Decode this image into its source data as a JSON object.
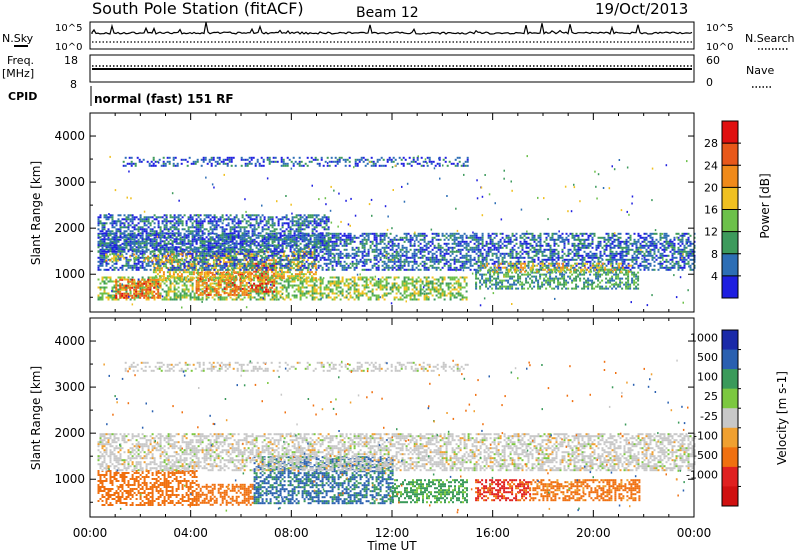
{
  "header": {
    "station": "South Pole Station (fitACF)",
    "beam": "Beam 12",
    "date": "19/Oct/2013"
  },
  "top_panels": {
    "nsky_label": "N.Sky",
    "nsky_ticks": [
      "10^5",
      "10^0"
    ],
    "nsearch_label": "N.Search",
    "nsearch_ticks": [
      "10^5",
      "10^0"
    ],
    "freq_label": "Freq.",
    "freq_unit": "[MHz]",
    "freq_ticks": [
      "18",
      "8"
    ],
    "nave_label": "Nave",
    "nave_ticks": [
      "60",
      "0"
    ],
    "cpid_label": "CPID",
    "cpid_value": "normal (fast) 151 RF"
  },
  "x_axis": {
    "label": "Time UT",
    "ticks": [
      "00:00",
      "04:00",
      "08:00",
      "12:00",
      "16:00",
      "20:00",
      "00:00"
    ]
  },
  "colors": {
    "power": [
      "#1f1fe0",
      "#2d6eb5",
      "#3d9a5c",
      "#6cc04a",
      "#f0c020",
      "#f08a1a",
      "#e8581a",
      "#e01010"
    ],
    "velocity": [
      "#1a2aa8",
      "#2a60b0",
      "#3a9a5a",
      "#7cc840",
      "#c8c8c8",
      "#f0a030",
      "#f07010",
      "#e02020",
      "#d01010"
    ]
  },
  "chart_data": [
    {
      "type": "heatmap",
      "name": "power",
      "xlabel": "Time UT",
      "ylabel": "Slant Range [km]",
      "xlim": [
        0,
        24
      ],
      "ylim": [
        180,
        4500
      ],
      "yticks": [
        1000,
        2000,
        3000,
        4000
      ],
      "colorbar": {
        "label": "Power [dB]",
        "ticks": [
          4,
          8,
          12,
          16,
          20,
          24,
          28
        ],
        "range": [
          0,
          30
        ]
      },
      "bands": [
        {
          "range_km": [
            450,
            950
          ],
          "t_start": 0.3,
          "t_end": 15.0,
          "level_db": 14
        },
        {
          "range_km": [
            500,
            900
          ],
          "t_start": 1.0,
          "t_end": 2.8,
          "level_db": 24
        },
        {
          "range_km": [
            550,
            1050
          ],
          "t_start": 4.2,
          "t_end": 6.4,
          "level_db": 24
        },
        {
          "range_km": [
            600,
            1250
          ],
          "t_start": 6.4,
          "t_end": 7.3,
          "level_db": 28
        },
        {
          "range_km": [
            850,
            1500
          ],
          "t_start": 2.5,
          "t_end": 9.0,
          "level_db": 18
        },
        {
          "range_km": [
            1100,
            1900
          ],
          "t_start": 0.3,
          "t_end": 24.0,
          "level_db": 6
        },
        {
          "range_km": [
            1300,
            1450
          ],
          "t_start": 0.6,
          "t_end": 3.8,
          "level_db": 18
        },
        {
          "range_km": [
            1500,
            2300
          ],
          "t_start": 0.3,
          "t_end": 9.5,
          "level_db": 6
        },
        {
          "range_km": [
            700,
            1100
          ],
          "t_start": 15.3,
          "t_end": 21.8,
          "level_db": 10
        },
        {
          "range_km": [
            1050,
            1250
          ],
          "t_start": 15.5,
          "t_end": 21.5,
          "level_db": 18
        },
        {
          "range_km": [
            3350,
            3550
          ],
          "t_start": 1.3,
          "t_end": 15.0,
          "level_db": 5
        }
      ]
    },
    {
      "type": "heatmap",
      "name": "velocity",
      "xlabel": "Time UT",
      "ylabel": "Slant Range [km]",
      "xlim": [
        0,
        24
      ],
      "ylim": [
        180,
        4500
      ],
      "yticks": [
        1000,
        2000,
        3000,
        4000
      ],
      "colorbar": {
        "label": "Velocity [m s-1]",
        "ticks": [
          1000,
          500,
          100,
          25,
          -25,
          -100,
          -500,
          -1000
        ]
      },
      "bands": [
        {
          "range_km": [
            450,
            1200
          ],
          "t_start": 0.3,
          "t_end": 4.2,
          "velocity": -200
        },
        {
          "range_km": [
            450,
            900
          ],
          "t_start": 4.2,
          "t_end": 6.5,
          "velocity": -200
        },
        {
          "range_km": [
            500,
            1500
          ],
          "t_start": 6.5,
          "t_end": 12.0,
          "velocity": 300
        },
        {
          "range_km": [
            500,
            1000
          ],
          "t_start": 12.0,
          "t_end": 15.0,
          "velocity": 80
        },
        {
          "range_km": [
            1200,
            2000
          ],
          "t_start": 0.3,
          "t_end": 24.0,
          "velocity": 0
        },
        {
          "range_km": [
            550,
            1000
          ],
          "t_start": 15.3,
          "t_end": 17.5,
          "velocity": -600
        },
        {
          "range_km": [
            550,
            1000
          ],
          "t_start": 17.5,
          "t_end": 21.8,
          "velocity": -150
        },
        {
          "range_km": [
            3350,
            3550
          ],
          "t_start": 1.3,
          "t_end": 15.0,
          "velocity": 0
        }
      ]
    }
  ]
}
